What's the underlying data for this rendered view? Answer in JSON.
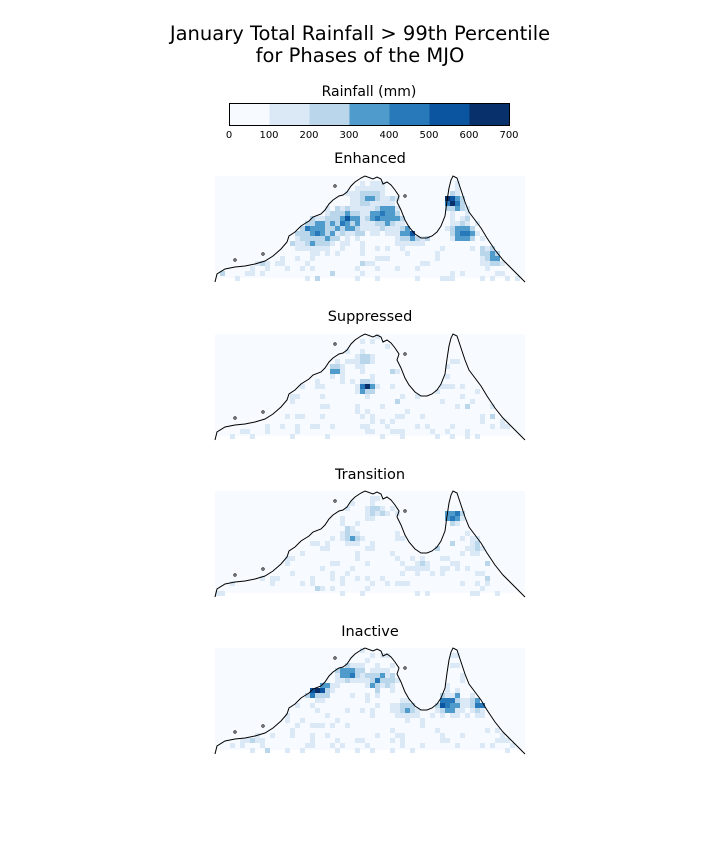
{
  "title_line1": "January Total Rainfall > 99th Percentile",
  "title_line2": "for Phases of the MJO",
  "chart_data": {
    "type": "heatmap",
    "title": "January Total Rainfall > 99th Percentile for Phases of the MJO",
    "colorbar": {
      "label": "Rainfall (mm)",
      "ticks": [
        "0",
        "100",
        "200",
        "300",
        "400",
        "500",
        "600",
        "700"
      ],
      "bounds": [
        0,
        100,
        200,
        300,
        400,
        500,
        600,
        700
      ],
      "colors": [
        "#f7fbff",
        "#dbe9f6",
        "#bad6eb",
        "#4f9bcb",
        "#2879b9",
        "#0b55a0",
        "#08306b"
      ]
    },
    "region": "Northern Australia",
    "panels": [
      {
        "name": "Enhanced",
        "hotspots": [
          [
            0.33,
            0.55,
            0.12,
            4
          ],
          [
            0.42,
            0.45,
            0.1,
            4
          ],
          [
            0.55,
            0.4,
            0.1,
            4
          ],
          [
            0.64,
            0.55,
            0.08,
            5
          ],
          [
            0.76,
            0.25,
            0.06,
            6
          ],
          [
            0.8,
            0.55,
            0.06,
            5
          ],
          [
            0.9,
            0.8,
            0.06,
            4
          ],
          [
            0.15,
            0.85,
            0.05,
            2
          ],
          [
            0.5,
            0.2,
            0.08,
            3
          ]
        ]
      },
      {
        "name": "Suppressed",
        "hotspots": [
          [
            0.49,
            0.52,
            0.04,
            6
          ],
          [
            0.39,
            0.35,
            0.03,
            4
          ],
          [
            0.48,
            0.25,
            0.05,
            2
          ],
          [
            0.8,
            0.55,
            0.04,
            1
          ]
        ]
      },
      {
        "name": "Transition",
        "hotspots": [
          [
            0.77,
            0.25,
            0.04,
            6
          ],
          [
            0.44,
            0.45,
            0.05,
            3
          ],
          [
            0.7,
            0.55,
            0.04,
            3
          ],
          [
            0.52,
            0.2,
            0.06,
            2
          ],
          [
            0.68,
            0.75,
            0.05,
            2
          ],
          [
            0.85,
            0.55,
            0.05,
            2
          ]
        ]
      },
      {
        "name": "Inactive",
        "hotspots": [
          [
            0.33,
            0.4,
            0.06,
            6
          ],
          [
            0.43,
            0.25,
            0.06,
            4
          ],
          [
            0.53,
            0.3,
            0.06,
            4
          ],
          [
            0.75,
            0.55,
            0.07,
            5
          ],
          [
            0.85,
            0.55,
            0.05,
            4
          ],
          [
            0.2,
            0.6,
            0.04,
            4
          ],
          [
            0.12,
            0.85,
            0.05,
            3
          ],
          [
            0.62,
            0.6,
            0.06,
            3
          ]
        ]
      }
    ]
  }
}
